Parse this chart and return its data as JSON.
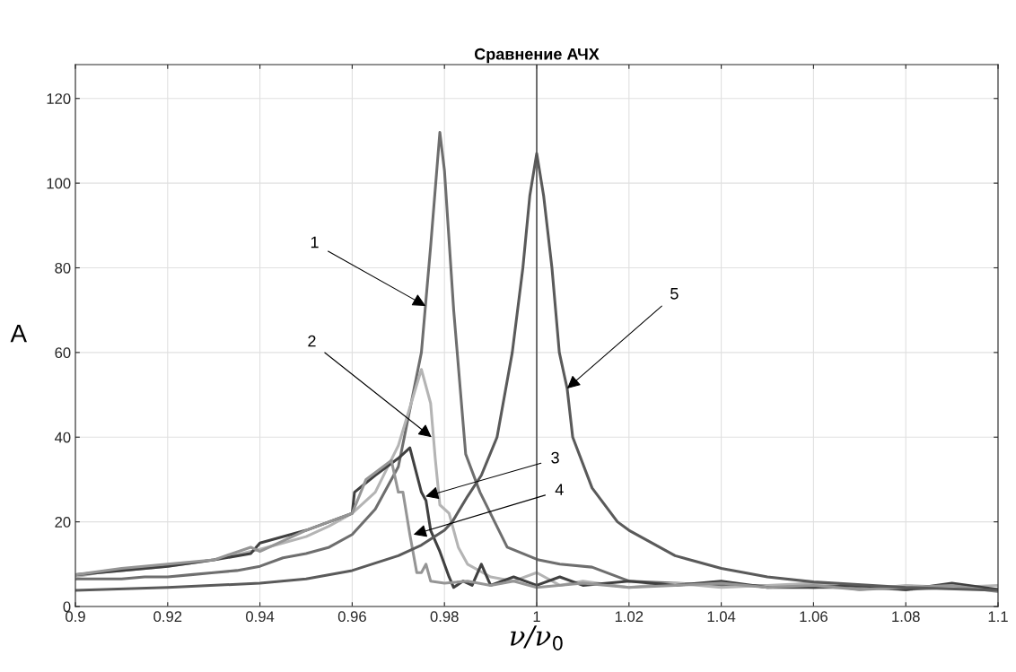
{
  "chart_data": {
    "type": "line",
    "title": "Сравнение АЧХ",
    "xlabel": "ν/ν$_{0}$",
    "ylabel": "A",
    "xlim": [
      0.9,
      1.1
    ],
    "xticks": [
      0.9,
      0.92,
      0.94,
      0.96,
      0.98,
      1,
      1.02,
      1.04,
      1.06,
      1.08,
      1.1
    ],
    "ylim": [
      0,
      128
    ],
    "yticks": [
      0,
      20,
      40,
      60,
      80,
      100,
      120
    ],
    "grid": true,
    "line_style": "solid",
    "ref_lines": [
      {
        "axis": "x",
        "value": 1,
        "color": "#555555"
      }
    ],
    "annotations": [
      {
        "text": "1",
        "x": 0.9759,
        "y": 71
      },
      {
        "text": "2",
        "x": 0.9772,
        "y": 40
      },
      {
        "text": "3",
        "x": 0.9759,
        "y": 26
      },
      {
        "text": "4",
        "x": 0.9733,
        "y": 17
      },
      {
        "text": "5",
        "x": 1.0066,
        "y": 51.5
      }
    ],
    "series": [
      {
        "color": "#6e6e6e",
        "x": [
          0.9,
          0.905,
          0.91,
          0.915,
          0.92,
          0.925,
          0.93,
          0.935,
          0.94,
          0.945,
          0.95,
          0.955,
          0.96,
          0.965,
          0.97,
          0.975,
          0.977,
          0.979,
          0.98,
          0.982,
          0.9846,
          0.9877,
          0.9936,
          1.0004,
          1.005,
          1.012,
          1.02,
          1.03,
          1.04,
          1.05,
          1.06,
          1.07,
          1.08,
          1.09,
          1.1
        ],
        "values": [
          6.5,
          6.5,
          6.5,
          7,
          7,
          7.5,
          8,
          8.5,
          9.5,
          11.5,
          12.5,
          14,
          17,
          23,
          33,
          60,
          85,
          112,
          103,
          70,
          36,
          27,
          14,
          11,
          10,
          9.3,
          6,
          5.5,
          5,
          5,
          4.5,
          4.5,
          4,
          4.5,
          4
        ]
      },
      {
        "color": "#b4b4b4",
        "x": [
          0.9,
          0.905,
          0.91,
          0.92,
          0.93,
          0.94,
          0.945,
          0.95,
          0.955,
          0.96,
          0.965,
          0.97,
          0.975,
          0.977,
          0.978,
          0.979,
          0.981,
          0.983,
          0.985,
          0.99,
          0.995,
          1.0,
          1.005,
          1.01,
          1.02,
          1.03,
          1.04,
          1.05,
          1.06,
          1.07,
          1.08,
          1.09,
          1.1
        ],
        "values": [
          7,
          8,
          8.5,
          9.5,
          11,
          13.5,
          15,
          16.5,
          19,
          22,
          27,
          38,
          56,
          48,
          35,
          24,
          22,
          14,
          10,
          7,
          6,
          8,
          5,
          6,
          4.5,
          5.5,
          4.5,
          5,
          5.5,
          4,
          5,
          4.5,
          5
        ]
      },
      {
        "color": "#404040",
        "x": [
          0.9,
          0.91,
          0.92,
          0.93,
          0.938,
          0.94,
          0.95,
          0.955,
          0.96,
          0.9605,
          0.965,
          0.97,
          0.9725,
          0.975,
          0.976,
          0.977,
          0.979,
          0.981,
          0.982,
          0.984,
          0.986,
          0.988,
          0.99,
          0.995,
          1.0,
          1.005,
          1.01,
          1.02,
          1.03,
          1.04,
          1.05,
          1.06,
          1.07,
          1.08,
          1.09,
          1.1
        ],
        "values": [
          7.5,
          8.5,
          9.5,
          11,
          12.5,
          15,
          18,
          20,
          22,
          27,
          31,
          35,
          37.5,
          27,
          25,
          18,
          13,
          7,
          4.5,
          6,
          5,
          10,
          5,
          7,
          5,
          7,
          5,
          6,
          5,
          6,
          4.5,
          4.5,
          5,
          4,
          5.5,
          4
        ]
      },
      {
        "color": "#959595",
        "x": [
          0.9,
          0.91,
          0.92,
          0.93,
          0.938,
          0.94,
          0.95,
          0.955,
          0.96,
          0.963,
          0.9685,
          0.97,
          0.971,
          0.9725,
          0.974,
          0.975,
          0.976,
          0.977,
          0.98,
          0.985,
          0.99,
          0.995,
          1.0,
          1.01,
          1.02,
          1.03,
          1.04,
          1.05,
          1.06,
          1.07,
          1.08,
          1.09,
          1.1
        ],
        "values": [
          7.5,
          9,
          10,
          11,
          14,
          13,
          18,
          20,
          22,
          30,
          34.5,
          27,
          27,
          17,
          8,
          8,
          10,
          6,
          5.5,
          6,
          5,
          6,
          4.5,
          5.5,
          4.5,
          5,
          5.5,
          4.5,
          5,
          4,
          4.5,
          5,
          3.5
        ]
      },
      {
        "color": "#5a5a5a",
        "x": [
          0.9,
          0.92,
          0.94,
          0.95,
          0.96,
          0.97,
          0.975,
          0.98,
          0.9817,
          0.985,
          0.988,
          0.9914,
          0.9947,
          0.997,
          0.9985,
          1,
          1.0015,
          1.0033,
          1.0049,
          1.0066,
          1.0078,
          1.012,
          1.0175,
          1.02,
          1.03,
          1.04,
          1.05,
          1.06,
          1.08,
          1.1
        ],
        "values": [
          3.8,
          4.5,
          5.5,
          6.5,
          8.5,
          12,
          14.5,
          18,
          20,
          26,
          31,
          40,
          60,
          80,
          97,
          107,
          97,
          80,
          60,
          51.5,
          40,
          28,
          20,
          18,
          12,
          9,
          7,
          5.8,
          4.5,
          3.8
        ]
      }
    ]
  }
}
